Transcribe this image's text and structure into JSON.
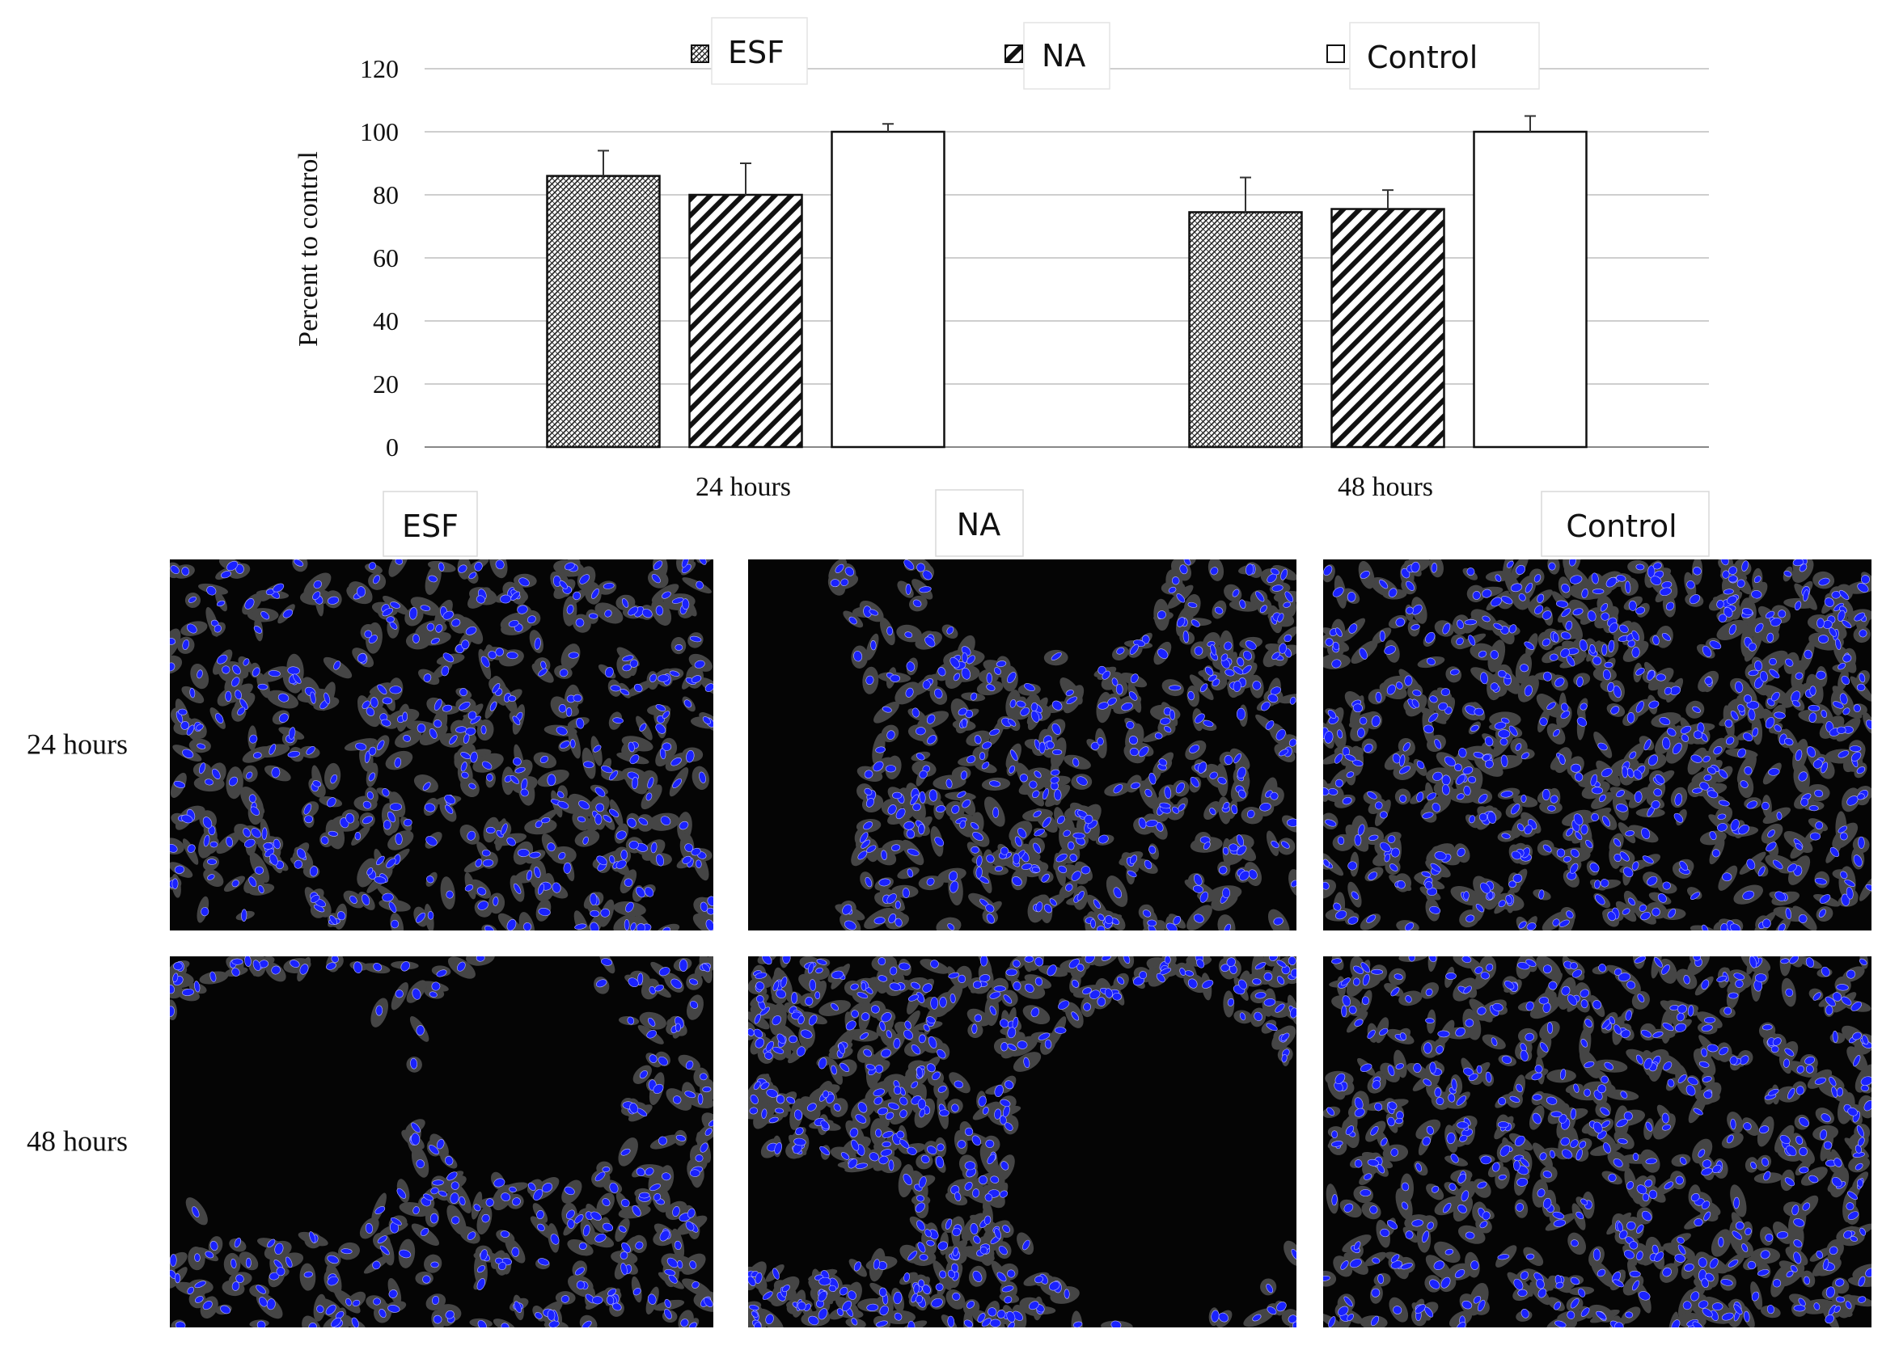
{
  "chart_data": {
    "type": "bar",
    "categories": [
      "24 hours",
      "48 hours"
    ],
    "series": [
      {
        "name": "ESF",
        "values": [
          86,
          74.5
        ],
        "errors": [
          8,
          11
        ],
        "pattern": "crosshatch"
      },
      {
        "name": "NA",
        "values": [
          80,
          75.5
        ],
        "errors": [
          10,
          6
        ],
        "pattern": "diagonal"
      },
      {
        "name": "Control",
        "values": [
          100,
          100
        ],
        "errors": [
          2.5,
          5
        ],
        "pattern": "none"
      }
    ],
    "title": "",
    "xlabel": "",
    "ylabel": "Percent to control",
    "ylim": [
      0,
      120
    ],
    "yticks": [
      0,
      20,
      40,
      60,
      80,
      100,
      120
    ],
    "grid": true,
    "legend_position": "top"
  },
  "image_panel": {
    "column_headers": [
      "ESF",
      "NA",
      "Control"
    ],
    "row_labels": [
      "24 hours",
      "48 hours"
    ],
    "stain_color": "#1a22ff",
    "background_color": "#050505",
    "cell_body_color": "#7a7a7a"
  }
}
